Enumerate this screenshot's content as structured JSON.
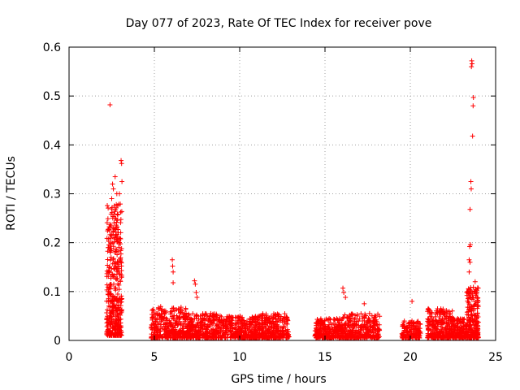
{
  "chart_data": {
    "type": "scatter",
    "title": "Day 077 of 2023, Rate Of TEC Index for receiver pove",
    "xlabel": "GPS time / hours",
    "ylabel": "ROTI / TECUs",
    "xlim": [
      0,
      25
    ],
    "ylim": [
      0,
      0.6
    ],
    "xticks": [
      0,
      5,
      10,
      15,
      20,
      25
    ],
    "yticks": [
      0,
      0.1,
      0.2,
      0.3,
      0.4,
      0.5,
      0.6
    ],
    "xtick_labels": [
      "0",
      "5",
      "10",
      "15",
      "20",
      "25"
    ],
    "ytick_labels": [
      "0",
      "0.1",
      "0.2",
      "0.3",
      "0.4",
      "0.5",
      "0.6"
    ],
    "grid": true,
    "legend": "none",
    "marker": "+",
    "color": "#ff0000",
    "outlier_points": [
      [
        2.4,
        0.482
      ],
      [
        2.55,
        0.32
      ],
      [
        2.6,
        0.31
      ],
      [
        2.7,
        0.335
      ],
      [
        2.8,
        0.3
      ],
      [
        3.05,
        0.368
      ],
      [
        3.08,
        0.362
      ],
      [
        3.1,
        0.325
      ],
      [
        2.95,
        0.3
      ],
      [
        2.5,
        0.29
      ],
      [
        6.05,
        0.165
      ],
      [
        6.07,
        0.152
      ],
      [
        6.1,
        0.14
      ],
      [
        6.1,
        0.118
      ],
      [
        7.35,
        0.122
      ],
      [
        7.4,
        0.115
      ],
      [
        7.45,
        0.098
      ],
      [
        7.5,
        0.088
      ],
      [
        16.05,
        0.107
      ],
      [
        16.1,
        0.098
      ],
      [
        16.2,
        0.088
      ],
      [
        17.3,
        0.075
      ],
      [
        20.1,
        0.08
      ],
      [
        23.6,
        0.572
      ],
      [
        23.62,
        0.566
      ],
      [
        23.58,
        0.56
      ],
      [
        23.7,
        0.497
      ],
      [
        23.68,
        0.48
      ],
      [
        23.65,
        0.418
      ],
      [
        23.55,
        0.325
      ],
      [
        23.57,
        0.31
      ],
      [
        23.5,
        0.268
      ],
      [
        23.52,
        0.196
      ],
      [
        23.48,
        0.192
      ],
      [
        23.45,
        0.165
      ],
      [
        23.5,
        0.16
      ],
      [
        23.45,
        0.14
      ],
      [
        23.8,
        0.12
      ]
    ],
    "dense_segments": [
      {
        "x_start": 2.2,
        "x_end": 3.1,
        "y_low": 0.01,
        "y_high": 0.28,
        "count": 420
      },
      {
        "x_start": 4.8,
        "x_end": 6.9,
        "y_low": 0.005,
        "y_high": 0.07,
        "count": 350
      },
      {
        "x_start": 6.9,
        "x_end": 9.0,
        "y_low": 0.005,
        "y_high": 0.055,
        "count": 320
      },
      {
        "x_start": 9.0,
        "x_end": 11.0,
        "y_low": 0.005,
        "y_high": 0.05,
        "count": 300
      },
      {
        "x_start": 11.0,
        "x_end": 12.9,
        "y_low": 0.005,
        "y_high": 0.055,
        "count": 280
      },
      {
        "x_start": 14.4,
        "x_end": 16.0,
        "y_low": 0.005,
        "y_high": 0.045,
        "count": 250
      },
      {
        "x_start": 16.0,
        "x_end": 18.2,
        "y_low": 0.005,
        "y_high": 0.055,
        "count": 320
      },
      {
        "x_start": 19.5,
        "x_end": 20.6,
        "y_low": 0.005,
        "y_high": 0.04,
        "count": 150
      },
      {
        "x_start": 21.0,
        "x_end": 22.5,
        "y_low": 0.005,
        "y_high": 0.065,
        "count": 260
      },
      {
        "x_start": 22.5,
        "x_end": 23.3,
        "y_low": 0.005,
        "y_high": 0.045,
        "count": 160
      },
      {
        "x_start": 23.3,
        "x_end": 24.0,
        "y_low": 0.005,
        "y_high": 0.11,
        "count": 220
      }
    ]
  }
}
